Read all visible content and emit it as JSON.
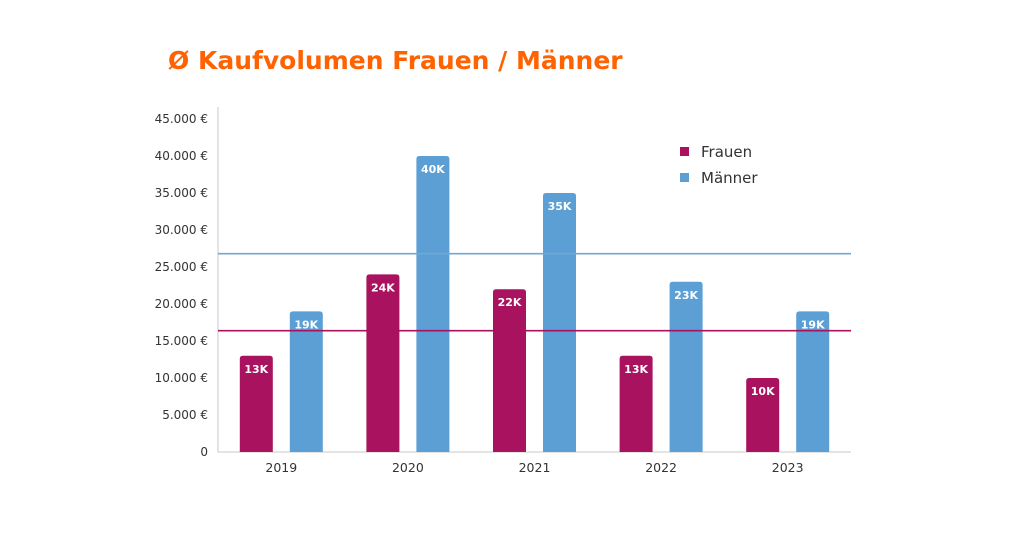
{
  "chart_data": {
    "type": "bar",
    "title": "Ø Kaufvolumen Frauen / Männer",
    "categories": [
      "2019",
      "2020",
      "2021",
      "2022",
      "2023"
    ],
    "series": [
      {
        "name": "Frauen",
        "values": [
          13000,
          24000,
          22000,
          13000,
          10000
        ],
        "labels": [
          "13K",
          "24K",
          "22K",
          "13K",
          "10K"
        ],
        "color": "#A8125F"
      },
      {
        "name": "Männer",
        "values": [
          19000,
          40000,
          35000,
          23000,
          19000
        ],
        "labels": [
          "19K",
          "40K",
          "35K",
          "23K",
          "19K"
        ],
        "color": "#5B9FD4"
      }
    ],
    "reference_lines": [
      {
        "series": "Frauen",
        "value": 16400,
        "color": "#A8125F"
      },
      {
        "series": "Männer",
        "value": 26800,
        "color": "#6FA8D2"
      }
    ],
    "ylim": [
      0,
      45000
    ],
    "yticks": [
      0,
      5000,
      10000,
      15000,
      20000,
      25000,
      30000,
      35000,
      40000,
      45000
    ],
    "ytick_labels": [
      "0",
      "5.000 €",
      "10.000 €",
      "15.000 €",
      "20.000 €",
      "25.000 €",
      "30.000 €",
      "35.000 €",
      "40.000 €",
      "45.000 €"
    ],
    "xlabel": "",
    "ylabel": "",
    "legend": "top-right",
    "grid": false,
    "title_color": "#FF6200"
  }
}
